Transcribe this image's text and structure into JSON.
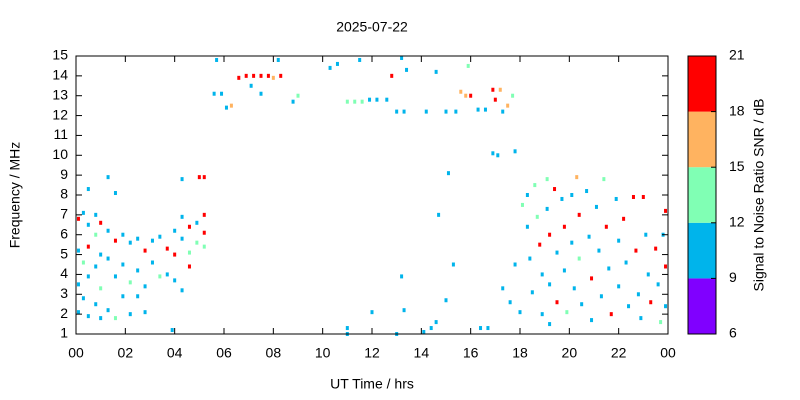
{
  "chart_data": {
    "type": "scatter",
    "title": "2025-07-22",
    "x_label": "UT Time / hrs",
    "y_label": "Frequency / MHz",
    "xlim": [
      0,
      24
    ],
    "xticks": [
      {
        "value": 0,
        "label": "00"
      },
      {
        "value": 2,
        "label": "02"
      },
      {
        "value": 4,
        "label": "04"
      },
      {
        "value": 6,
        "label": "06"
      },
      {
        "value": 8,
        "label": "08"
      },
      10,
      12,
      14,
      16,
      18,
      20,
      22,
      {
        "value": 24,
        "label": "00"
      }
    ],
    "ylim": [
      1,
      15
    ],
    "yticks": [
      1,
      2,
      3,
      4,
      5,
      6,
      7,
      8,
      9,
      10,
      11,
      12,
      13,
      14,
      15
    ],
    "colorbar": {
      "label": "Signal to Noise Ratio SNR / dB",
      "lim": [
        6,
        21
      ],
      "ticks": [
        6,
        9,
        12,
        15,
        18,
        21
      ],
      "colors": [
        "#8000ff",
        "#00b4eb",
        "#80ffb4",
        "#ffb360",
        "#ff0000"
      ]
    },
    "points": [
      [
        0.1,
        6.8,
        19
      ],
      [
        0.1,
        5.2,
        10
      ],
      [
        0.1,
        3.5,
        10
      ],
      [
        0.1,
        2.1,
        10
      ],
      [
        0.3,
        7.1,
        10
      ],
      [
        0.3,
        4.6,
        13
      ],
      [
        0.3,
        2.8,
        10
      ],
      [
        0.5,
        6.5,
        10
      ],
      [
        0.5,
        5.4,
        19
      ],
      [
        0.5,
        3.9,
        10
      ],
      [
        0.5,
        1.9,
        10
      ],
      [
        0.5,
        8.3,
        10
      ],
      [
        0.8,
        7.0,
        10
      ],
      [
        0.8,
        6.0,
        13
      ],
      [
        0.8,
        4.4,
        10
      ],
      [
        0.8,
        2.5,
        10
      ],
      [
        1.0,
        6.6,
        19
      ],
      [
        1.0,
        5.0,
        10
      ],
      [
        1.0,
        3.3,
        13
      ],
      [
        1.0,
        1.8,
        10
      ],
      [
        1.3,
        8.9,
        10
      ],
      [
        1.3,
        6.2,
        10
      ],
      [
        1.3,
        4.8,
        10
      ],
      [
        1.3,
        2.2,
        10
      ],
      [
        1.6,
        8.1,
        10
      ],
      [
        1.6,
        5.7,
        19
      ],
      [
        1.6,
        3.9,
        10
      ],
      [
        1.6,
        1.8,
        13
      ],
      [
        1.9,
        6.0,
        10
      ],
      [
        1.9,
        4.5,
        10
      ],
      [
        1.9,
        2.9,
        10
      ],
      [
        2.2,
        5.6,
        10
      ],
      [
        2.2,
        3.6,
        13
      ],
      [
        2.2,
        2.0,
        10
      ],
      [
        2.5,
        5.8,
        10
      ],
      [
        2.5,
        4.2,
        10
      ],
      [
        2.5,
        2.9,
        10
      ],
      [
        2.8,
        5.2,
        19
      ],
      [
        2.8,
        3.4,
        10
      ],
      [
        2.8,
        2.1,
        10
      ],
      [
        3.1,
        5.7,
        10
      ],
      [
        3.1,
        4.6,
        10
      ],
      [
        3.4,
        5.9,
        10
      ],
      [
        3.4,
        3.9,
        13
      ],
      [
        3.7,
        5.3,
        19
      ],
      [
        3.7,
        4.0,
        10
      ],
      [
        3.9,
        1.2,
        10
      ],
      [
        4.0,
        6.2,
        10
      ],
      [
        4.0,
        5.0,
        19
      ],
      [
        4.0,
        3.7,
        10
      ],
      [
        4.3,
        6.9,
        10
      ],
      [
        4.3,
        5.8,
        10
      ],
      [
        4.3,
        8.8,
        10
      ],
      [
        4.3,
        3.2,
        10
      ],
      [
        4.6,
        6.4,
        19
      ],
      [
        4.6,
        5.1,
        13
      ],
      [
        4.6,
        4.4,
        19
      ],
      [
        4.9,
        6.6,
        10
      ],
      [
        4.9,
        5.6,
        13
      ],
      [
        5.0,
        8.9,
        19
      ],
      [
        5.2,
        6.1,
        19
      ],
      [
        5.2,
        5.4,
        13
      ],
      [
        5.2,
        8.9,
        19
      ],
      [
        5.2,
        7.0,
        19
      ],
      [
        5.7,
        14.8,
        10
      ],
      [
        5.6,
        13.1,
        10
      ],
      [
        5.9,
        13.1,
        10
      ],
      [
        6.1,
        12.4,
        10
      ],
      [
        6.3,
        12.5,
        16
      ],
      [
        6.6,
        13.9,
        19
      ],
      [
        6.9,
        14.0,
        19
      ],
      [
        7.2,
        14.0,
        19
      ],
      [
        7.5,
        14.0,
        19
      ],
      [
        7.8,
        14.0,
        19
      ],
      [
        8.0,
        13.9,
        16
      ],
      [
        8.3,
        14.0,
        19
      ],
      [
        7.1,
        13.5,
        10
      ],
      [
        7.5,
        13.1,
        10
      ],
      [
        8.2,
        14.8,
        10
      ],
      [
        8.8,
        12.7,
        10
      ],
      [
        9.0,
        13.0,
        13
      ],
      [
        10.3,
        14.4,
        10
      ],
      [
        10.6,
        14.6,
        10
      ],
      [
        11.0,
        12.7,
        13
      ],
      [
        11.3,
        12.7,
        13
      ],
      [
        11.5,
        14.8,
        10
      ],
      [
        11.6,
        12.7,
        13
      ],
      [
        11.9,
        12.8,
        10
      ],
      [
        12.2,
        12.8,
        10
      ],
      [
        12.6,
        12.8,
        10
      ],
      [
        12.8,
        14.0,
        19
      ],
      [
        13.0,
        12.2,
        10
      ],
      [
        13.2,
        14.9,
        10
      ],
      [
        13.3,
        12.2,
        10
      ],
      [
        13.4,
        14.3,
        10
      ],
      [
        14.2,
        12.2,
        10
      ],
      [
        14.6,
        14.2,
        10
      ],
      [
        15.0,
        12.2,
        10
      ],
      [
        15.4,
        12.2,
        10
      ],
      [
        15.6,
        13.2,
        16
      ],
      [
        15.8,
        13.0,
        16
      ],
      [
        15.9,
        14.5,
        13
      ],
      [
        16.0,
        13.0,
        19
      ],
      [
        16.3,
        12.3,
        10
      ],
      [
        16.6,
        12.3,
        10
      ],
      [
        16.9,
        13.3,
        19
      ],
      [
        17.0,
        12.8,
        19
      ],
      [
        17.2,
        13.3,
        16
      ],
      [
        17.3,
        12.2,
        10
      ],
      [
        17.5,
        12.5,
        16
      ],
      [
        17.7,
        13.0,
        13
      ],
      [
        16.9,
        10.1,
        10
      ],
      [
        17.1,
        10.0,
        10
      ],
      [
        17.8,
        10.2,
        10
      ],
      [
        15.1,
        9.1,
        10
      ],
      [
        14.7,
        7.0,
        10
      ],
      [
        15.3,
        4.5,
        10
      ],
      [
        13.2,
        3.9,
        10
      ],
      [
        13.3,
        2.2,
        10
      ],
      [
        11.0,
        1.3,
        10
      ],
      [
        11.0,
        1.0,
        10
      ],
      [
        12.0,
        2.1,
        10
      ],
      [
        13.0,
        1.0,
        10
      ],
      [
        14.1,
        1.1,
        10
      ],
      [
        14.4,
        1.3,
        10
      ],
      [
        14.6,
        1.6,
        10
      ],
      [
        15.0,
        2.7,
        10
      ],
      [
        16.4,
        1.3,
        10
      ],
      [
        16.7,
        1.3,
        10
      ],
      [
        17.3,
        3.3,
        10
      ],
      [
        17.6,
        2.6,
        10
      ],
      [
        17.8,
        4.5,
        10
      ],
      [
        18.0,
        2.1,
        10
      ],
      [
        18.1,
        7.5,
        13
      ],
      [
        18.3,
        8.0,
        10
      ],
      [
        18.3,
        6.4,
        10
      ],
      [
        18.4,
        4.8,
        10
      ],
      [
        18.5,
        3.1,
        10
      ],
      [
        18.6,
        8.5,
        13
      ],
      [
        18.7,
        6.9,
        13
      ],
      [
        18.8,
        5.5,
        19
      ],
      [
        18.9,
        4.0,
        10
      ],
      [
        18.9,
        2.0,
        10
      ],
      [
        19.1,
        8.8,
        13
      ],
      [
        19.1,
        7.3,
        10
      ],
      [
        19.2,
        6.0,
        19
      ],
      [
        19.2,
        3.5,
        10
      ],
      [
        19.2,
        1.5,
        10
      ],
      [
        19.4,
        8.3,
        19
      ],
      [
        19.5,
        5.1,
        10
      ],
      [
        19.5,
        2.6,
        19
      ],
      [
        19.7,
        7.8,
        10
      ],
      [
        19.8,
        6.4,
        19
      ],
      [
        19.8,
        4.2,
        10
      ],
      [
        19.9,
        2.1,
        13
      ],
      [
        20.1,
        8.0,
        10
      ],
      [
        20.1,
        5.6,
        10
      ],
      [
        20.2,
        3.3,
        10
      ],
      [
        20.3,
        8.9,
        16
      ],
      [
        20.4,
        7.0,
        19
      ],
      [
        20.4,
        4.8,
        13
      ],
      [
        20.5,
        2.5,
        10
      ],
      [
        20.7,
        8.2,
        10
      ],
      [
        20.8,
        5.9,
        10
      ],
      [
        20.9,
        3.8,
        19
      ],
      [
        20.9,
        1.7,
        10
      ],
      [
        21.1,
        7.4,
        10
      ],
      [
        21.2,
        5.2,
        10
      ],
      [
        21.3,
        2.9,
        10
      ],
      [
        21.4,
        8.8,
        13
      ],
      [
        21.5,
        6.4,
        19
      ],
      [
        21.6,
        4.3,
        10
      ],
      [
        21.7,
        2.0,
        19
      ],
      [
        21.9,
        7.8,
        10
      ],
      [
        22.0,
        5.7,
        10
      ],
      [
        22.0,
        3.4,
        10
      ],
      [
        22.2,
        6.8,
        19
      ],
      [
        22.3,
        4.6,
        10
      ],
      [
        22.4,
        2.4,
        10
      ],
      [
        22.6,
        7.9,
        19
      ],
      [
        22.7,
        5.2,
        19
      ],
      [
        22.8,
        3.0,
        10
      ],
      [
        22.9,
        1.8,
        10
      ],
      [
        23.0,
        7.9,
        19
      ],
      [
        23.1,
        6.0,
        10
      ],
      [
        23.2,
        4.0,
        10
      ],
      [
        23.3,
        2.6,
        19
      ],
      [
        23.5,
        5.3,
        19
      ],
      [
        23.6,
        3.5,
        10
      ],
      [
        23.7,
        1.6,
        13
      ],
      [
        23.8,
        6.0,
        10
      ],
      [
        23.9,
        4.4,
        19
      ],
      [
        23.9,
        7.2,
        19
      ],
      [
        23.9,
        2.4,
        10
      ]
    ]
  }
}
